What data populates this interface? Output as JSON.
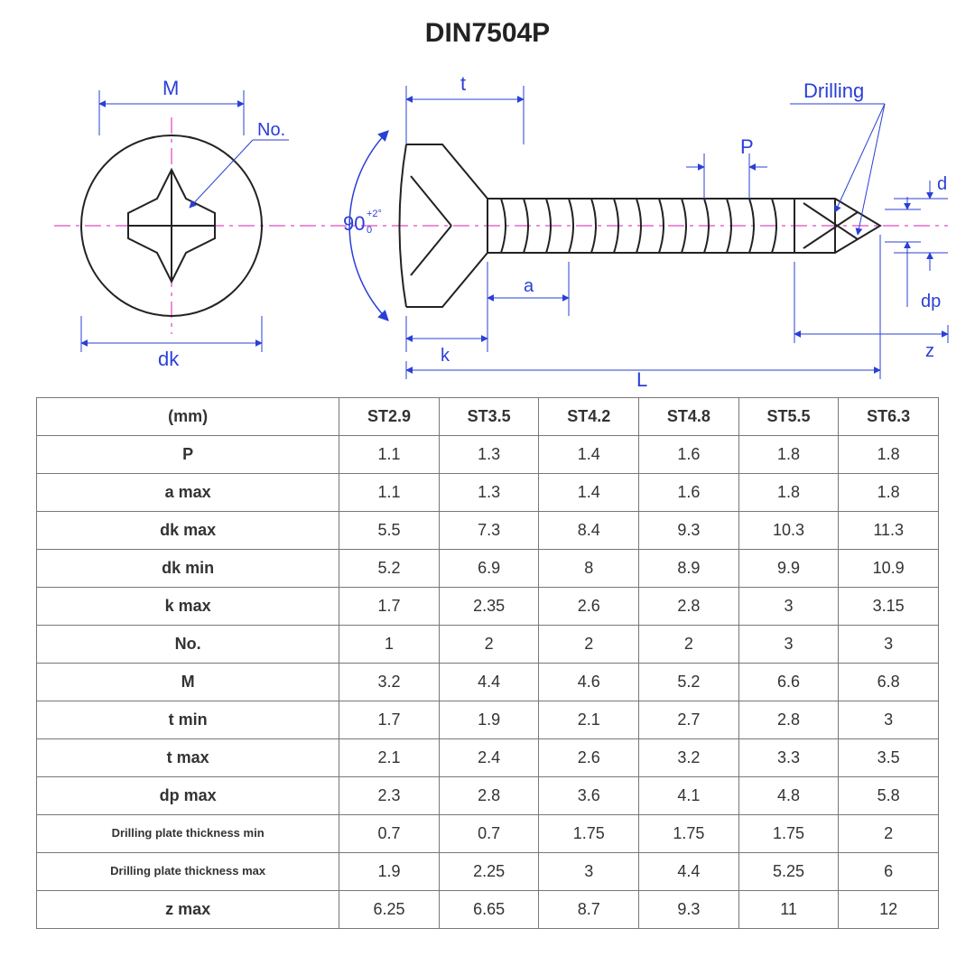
{
  "title": "DIN7504P",
  "diagram": {
    "stroke_blue": "#2a3fd6",
    "stroke_black": "#222222",
    "centerline": "#d91db4",
    "bg": "#ffffff",
    "font_size_label": 20,
    "angle_text": "90",
    "angle_tol_text": "+2°\n 0",
    "labels": {
      "M": "M",
      "No": "No.",
      "dk": "dk",
      "t": "t",
      "a": "a",
      "k": "k",
      "L": "L",
      "P": "P",
      "d": "d",
      "dp": "dp",
      "z": "z",
      "Drilling": "Drilling"
    }
  },
  "table": {
    "unit_header": "(mm)",
    "columns": [
      "ST2.9",
      "ST3.5",
      "ST4.2",
      "ST4.8",
      "ST5.5",
      "ST6.3"
    ],
    "rows": [
      {
        "label": "P",
        "cells": [
          "1.1",
          "1.3",
          "1.4",
          "1.6",
          "1.8",
          "1.8"
        ]
      },
      {
        "label": "a max",
        "cells": [
          "1.1",
          "1.3",
          "1.4",
          "1.6",
          "1.8",
          "1.8"
        ]
      },
      {
        "label": "dk max",
        "cells": [
          "5.5",
          "7.3",
          "8.4",
          "9.3",
          "10.3",
          "11.3"
        ]
      },
      {
        "label": "dk min",
        "cells": [
          "5.2",
          "6.9",
          "8",
          "8.9",
          "9.9",
          "10.9"
        ]
      },
      {
        "label": "k max",
        "cells": [
          "1.7",
          "2.35",
          "2.6",
          "2.8",
          "3",
          "3.15"
        ]
      },
      {
        "label": "No.",
        "cells": [
          "1",
          "2",
          "2",
          "2",
          "3",
          "3"
        ]
      },
      {
        "label": "M",
        "cells": [
          "3.2",
          "4.4",
          "4.6",
          "5.2",
          "6.6",
          "6.8"
        ]
      },
      {
        "label": "t min",
        "cells": [
          "1.7",
          "1.9",
          "2.1",
          "2.7",
          "2.8",
          "3"
        ]
      },
      {
        "label": "t max",
        "cells": [
          "2.1",
          "2.4",
          "2.6",
          "3.2",
          "3.3",
          "3.5"
        ]
      },
      {
        "label": "dp max",
        "cells": [
          "2.3",
          "2.8",
          "3.6",
          "4.1",
          "4.8",
          "5.8"
        ]
      },
      {
        "label": "Drilling plate thickness min",
        "small": true,
        "cells": [
          "0.7",
          "0.7",
          "1.75",
          "1.75",
          "1.75",
          "2"
        ]
      },
      {
        "label": "Drilling plate thickness max",
        "small": true,
        "cells": [
          "1.9",
          "2.25",
          "3",
          "4.4",
          "5.25",
          "6"
        ]
      },
      {
        "label": "z max",
        "cells": [
          "6.25",
          "6.65",
          "8.7",
          "9.3",
          "11",
          "12"
        ]
      }
    ]
  }
}
